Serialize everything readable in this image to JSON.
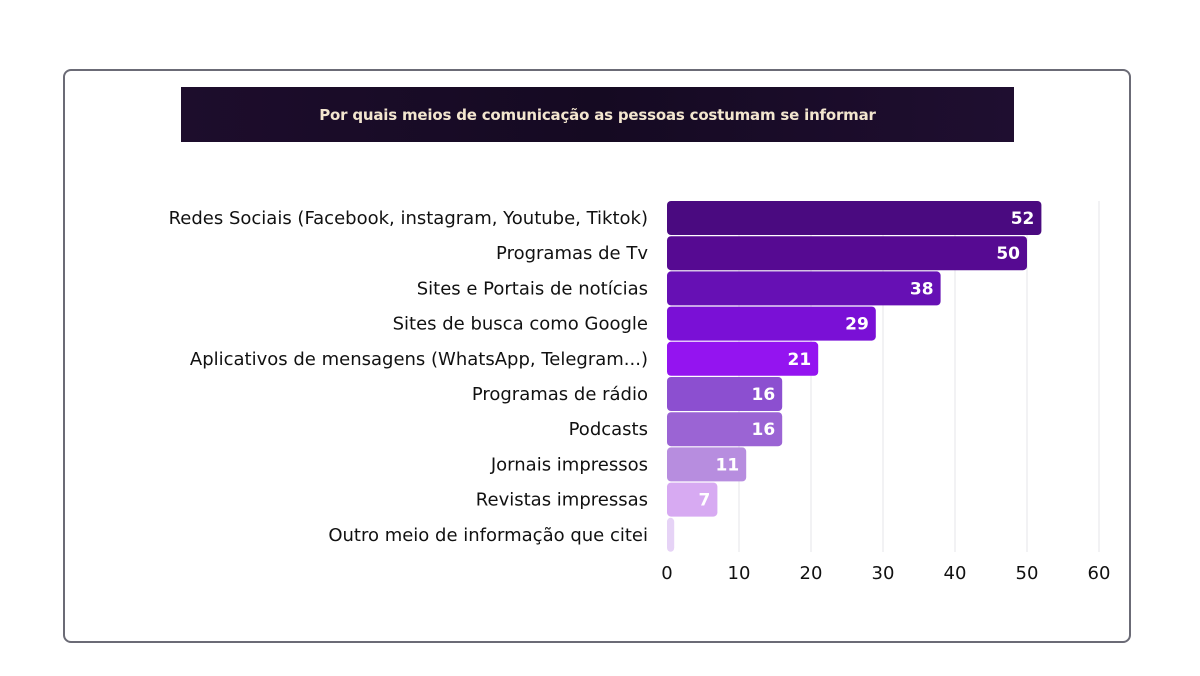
{
  "chart_data": {
    "type": "bar",
    "orientation": "horizontal",
    "title": "Por quais meios de comunicação as pessoas costumam se informar",
    "categories": [
      "Redes Sociais (Facebook, instagram, Youtube, Tiktok)",
      "Programas de Tv",
      "Sites e Portais de notícias",
      "Sites de busca como Google",
      "Aplicativos de mensagens (WhatsApp, Telegram...)",
      "Programas de rádio",
      "Podcasts",
      "Jornais impressos",
      "Revistas impressas",
      "Outro meio de informação que citei"
    ],
    "values": [
      52,
      50,
      38,
      29,
      21,
      16,
      16,
      11,
      7,
      1
    ],
    "value_labels": [
      "52",
      "50",
      "38",
      "29",
      "21",
      "16",
      "16",
      "11",
      "7",
      ""
    ],
    "xlim": [
      0,
      60
    ],
    "xticks": [
      "0",
      "10",
      "20",
      "30",
      "40",
      "50",
      "60"
    ],
    "xlabel": "",
    "ylabel": "",
    "grid": true,
    "legend": "none",
    "colors": [
      "#4a0a80",
      "#560a92",
      "#6610b4",
      "#7a10d6",
      "#9414f0",
      "#8c4fd0",
      "#9b64d4",
      "#b78ddf",
      "#d7aaf2",
      "#e6d3f6"
    ]
  }
}
